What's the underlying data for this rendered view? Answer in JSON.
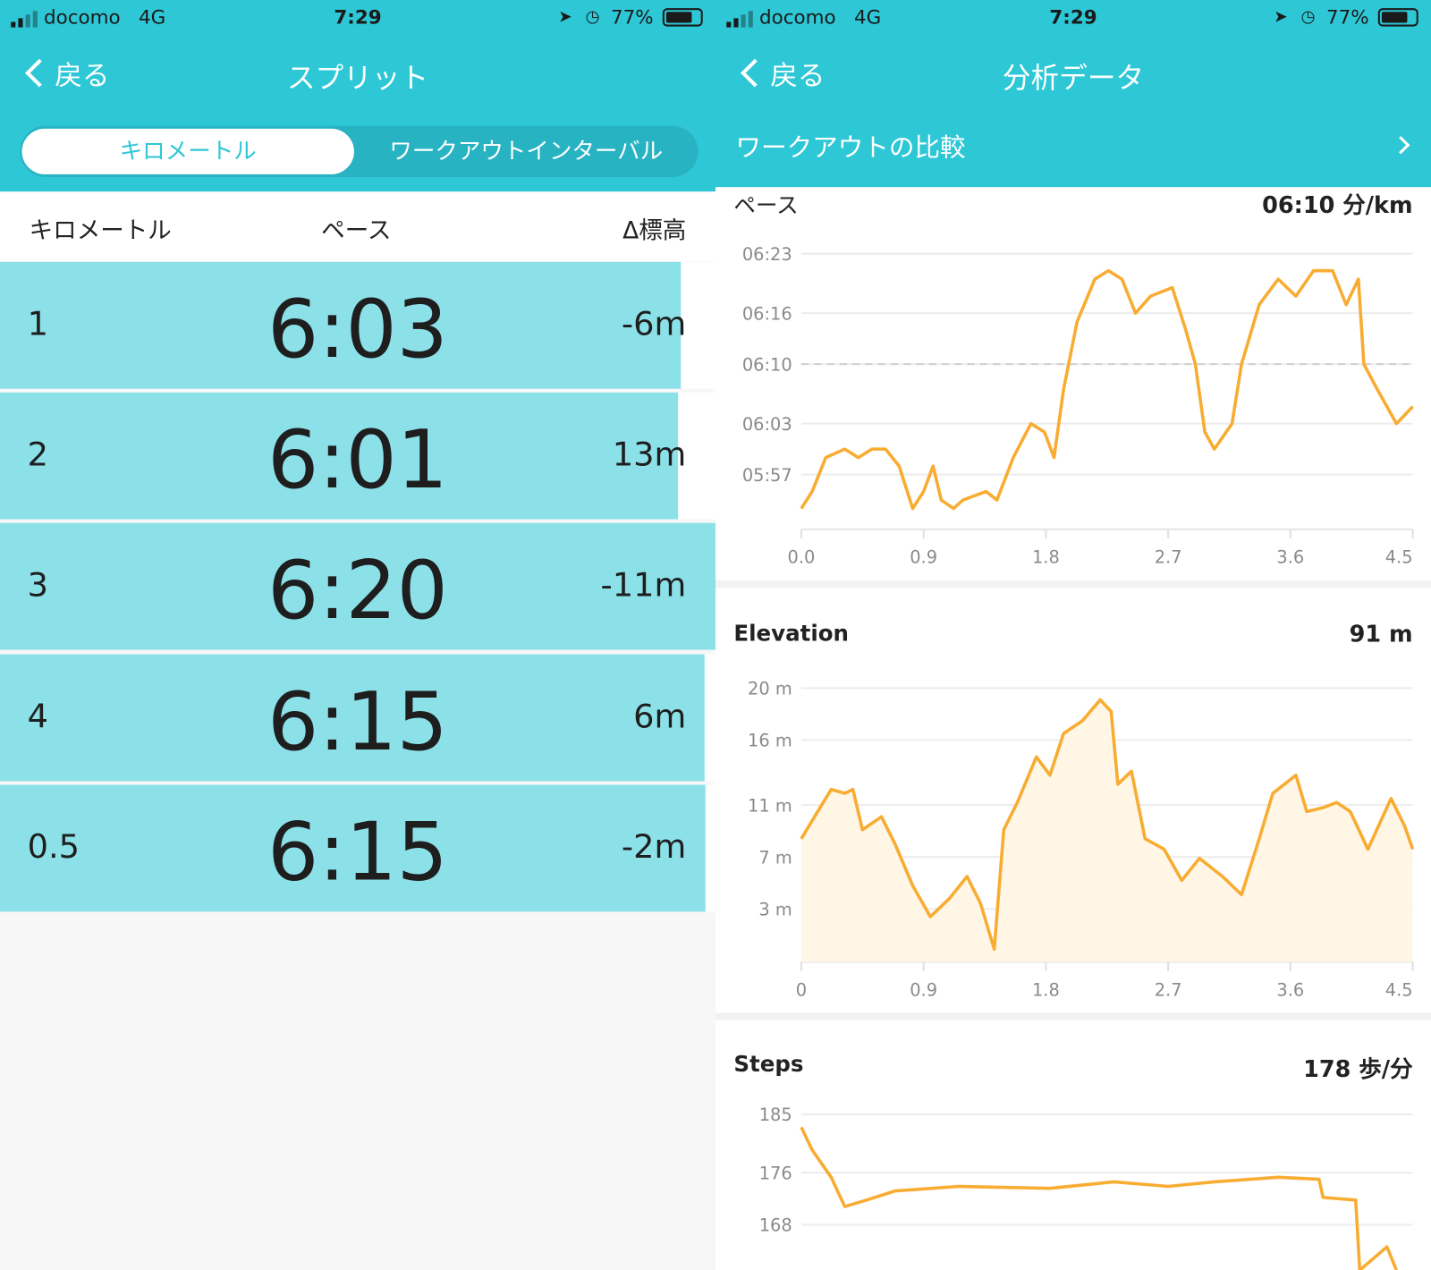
{
  "colors": {
    "header": "#2ec7d6",
    "bar": "#8ce1e9",
    "line": "#f8ac32",
    "area": "#fff6e6"
  },
  "status": {
    "carrier": "docomo",
    "network": "4G",
    "time": "7:29",
    "battery": "77%",
    "icons": [
      "signal-icon",
      "location-arrow-icon",
      "alarm-icon",
      "battery-icon"
    ]
  },
  "left": {
    "back_label": "戻る",
    "title": "スプリット",
    "segments": [
      "キロメートル",
      "ワークアウトインターバル"
    ],
    "selected_segment": "キロメートル",
    "columns": [
      "キロメートル",
      "ペース",
      "Δ標高"
    ],
    "rows": [
      {
        "km": "1",
        "pace": "6:03",
        "elev": "-6m",
        "bar_fill_pct": 95.2
      },
      {
        "km": "2",
        "pace": "6:01",
        "elev": "13m",
        "bar_fill_pct": 94.8
      },
      {
        "km": "3",
        "pace": "6:20",
        "elev": "-11m",
        "bar_fill_pct": 100
      },
      {
        "km": "4",
        "pace": "6:15",
        "elev": "6m",
        "bar_fill_pct": 98.5
      },
      {
        "km": "0.5",
        "pace": "6:15",
        "elev": "-2m",
        "bar_fill_pct": 98.6
      }
    ]
  },
  "right": {
    "back_label": "戻る",
    "title": "分析データ",
    "compare_label": "ワークアウトの比較"
  },
  "chart_data": [
    {
      "type": "line",
      "title": "ペース",
      "summary": "06:10 分/km",
      "average_line": "06:10",
      "xlim": [
        0,
        4.5
      ],
      "ylim": [
        "05:52",
        "06:23"
      ],
      "xticks": [
        "0.0",
        "0.9",
        "1.8",
        "2.7",
        "3.6",
        "4.5"
      ],
      "yticks": [
        "06:23",
        "06:16",
        "06:10",
        "06:03",
        "05:57"
      ],
      "grid": true,
      "x": [
        0,
        0.08,
        0.18,
        0.32,
        0.42,
        0.52,
        0.62,
        0.72,
        0.82,
        0.9,
        0.97,
        1.03,
        1.12,
        1.19,
        1.36,
        1.44,
        1.56,
        1.69,
        1.79,
        1.86,
        1.93,
        2.03,
        2.16,
        2.26,
        2.36,
        2.46,
        2.57,
        2.73,
        2.83,
        2.9,
        2.97,
        3.04,
        3.17,
        3.24,
        3.37,
        3.51,
        3.64,
        3.77,
        3.91,
        4.01,
        4.1,
        4.14,
        4.24,
        4.38,
        4.5
      ],
      "y": [
        "05:53",
        "05:55",
        "05:59",
        "06:00",
        "05:59",
        "06:00",
        "06:00",
        "05:58",
        "05:53",
        "05:55",
        "05:58",
        "05:54",
        "05:53",
        "05:54",
        "05:55",
        "05:54",
        "05:59",
        "06:03",
        "06:02",
        "05:59",
        "06:07",
        "06:15",
        "06:20",
        "06:21",
        "06:20",
        "06:16",
        "06:18",
        "06:19",
        "06:14",
        "06:10",
        "06:02",
        "06:00",
        "06:03",
        "06:10",
        "06:17",
        "06:20",
        "06:18",
        "06:21",
        "06:21",
        "06:17",
        "06:20",
        "06:10",
        "06:07",
        "06:03",
        "06:05"
      ]
    },
    {
      "type": "area",
      "title": "Elevation",
      "summary": "91 m",
      "xlim": [
        0,
        4.5
      ],
      "ylim": [
        -1,
        20
      ],
      "xticks": [
        "0",
        "0.9",
        "1.8",
        "2.7",
        "3.6",
        "4.5"
      ],
      "yticks": [
        "20 m",
        "16 m",
        "11 m",
        "7 m",
        "3 m"
      ],
      "ytick_values": [
        20,
        16,
        11,
        7,
        3
      ],
      "grid": true,
      "x": [
        0,
        0.08,
        0.22,
        0.32,
        0.38,
        0.45,
        0.59,
        0.69,
        0.82,
        0.95,
        1.09,
        1.22,
        1.32,
        1.42,
        1.49,
        1.59,
        1.73,
        1.83,
        1.93,
        2.07,
        2.2,
        2.28,
        2.33,
        2.43,
        2.53,
        2.67,
        2.8,
        2.93,
        3.1,
        3.24,
        3.37,
        3.47,
        3.64,
        3.72,
        3.84,
        3.94,
        4.04,
        4.17,
        4.34,
        4.44,
        4.5
      ],
      "y": [
        8.4,
        9.8,
        12.2,
        11.9,
        12.2,
        9.1,
        10.1,
        8.0,
        4.8,
        2.4,
        3.8,
        5.5,
        3.4,
        -0.1,
        9.1,
        11.2,
        14.7,
        13.3,
        16.5,
        17.5,
        19.1,
        18.2,
        12.6,
        13.6,
        8.4,
        7.6,
        5.2,
        6.9,
        5.5,
        4.1,
        8.4,
        11.9,
        13.3,
        10.5,
        10.8,
        11.2,
        10.5,
        7.6,
        11.5,
        9.4,
        7.6
      ]
    },
    {
      "type": "line",
      "title": "Steps",
      "summary": "178 歩/分",
      "xlim": [
        0,
        4.5
      ],
      "ylim": [
        160,
        185
      ],
      "yticks": [
        "185",
        "176",
        "168"
      ],
      "ytick_values": [
        185,
        176,
        168
      ],
      "grid": true,
      "x": [
        0,
        0.08,
        0.22,
        0.32,
        0.48,
        0.69,
        1.16,
        1.83,
        2.3,
        2.7,
        3.04,
        3.51,
        3.81,
        3.84,
        4.08,
        4.11,
        4.31,
        4.38
      ],
      "y": [
        183,
        179.5,
        175.3,
        170.8,
        171.8,
        173.2,
        173.9,
        173.6,
        174.6,
        173.9,
        174.6,
        175.3,
        175,
        172.2,
        171.8,
        161,
        164.6,
        161
      ]
    }
  ]
}
